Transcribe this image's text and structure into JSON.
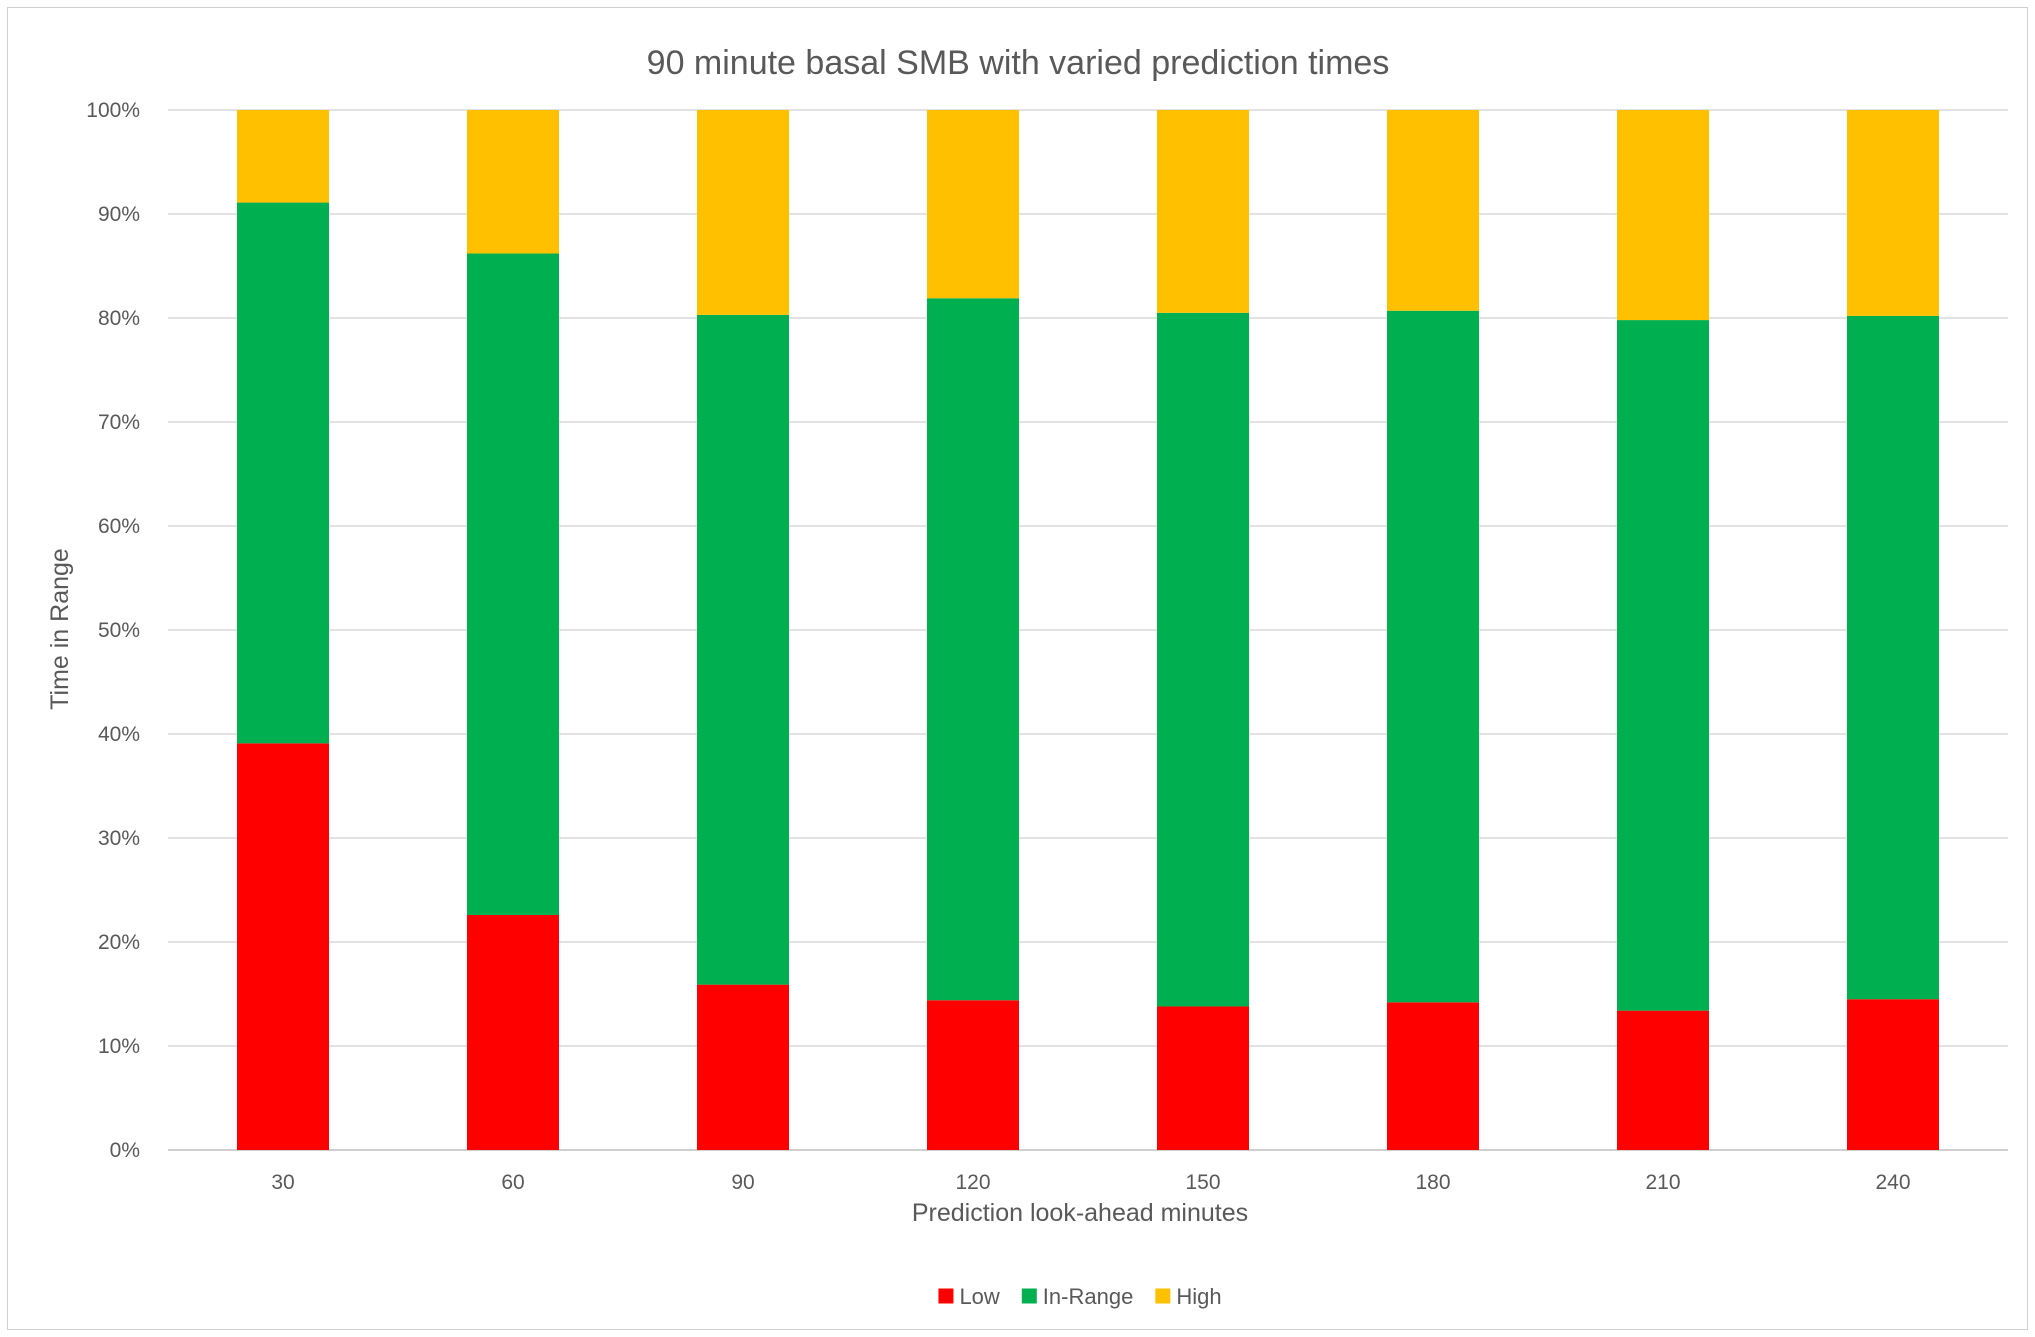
{
  "chart_data": {
    "type": "bar",
    "stacked": true,
    "title": "90 minute basal SMB with varied prediction times",
    "xlabel": "Prediction look-ahead minutes",
    "ylabel": "Time in Range",
    "categories": [
      "30",
      "60",
      "90",
      "120",
      "150",
      "180",
      "210",
      "240"
    ],
    "y_ticks": [
      "0%",
      "10%",
      "20%",
      "30%",
      "40%",
      "50%",
      "60%",
      "70%",
      "80%",
      "90%",
      "100%"
    ],
    "ylim": [
      0,
      1
    ],
    "grid": true,
    "legend_position": "bottom",
    "series": [
      {
        "name": "Low",
        "color": "#ff0000",
        "values": [
          0.391,
          0.226,
          0.159,
          0.144,
          0.138,
          0.142,
          0.134,
          0.145
        ]
      },
      {
        "name": "In-Range",
        "color": "#00b050",
        "values": [
          0.52,
          0.636,
          0.644,
          0.675,
          0.667,
          0.665,
          0.664,
          0.657
        ]
      },
      {
        "name": "High",
        "color": "#ffc000",
        "values": [
          0.089,
          0.138,
          0.197,
          0.181,
          0.195,
          0.193,
          0.202,
          0.198
        ]
      }
    ]
  }
}
